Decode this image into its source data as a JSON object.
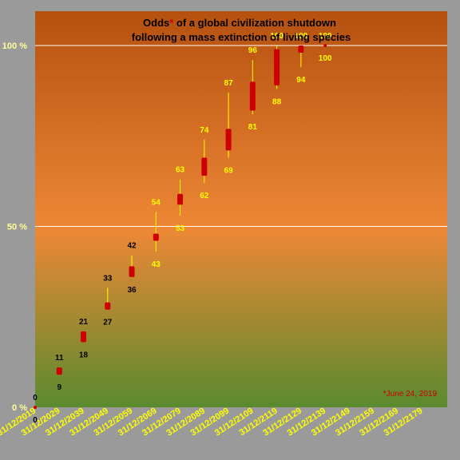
{
  "chart_data": {
    "type": "candlestick",
    "title_line1_pre": "Odds",
    "title_asterisk": "*",
    "title_line1_post": " of a global civilization shutdown",
    "title_line2": "following a mass extinction of living species",
    "footnote": "*June 24, 2019",
    "ylim": [
      0,
      100
    ],
    "y_ticks": [
      {
        "value": 0,
        "label": "0 %"
      },
      {
        "value": 50,
        "label": "50 %"
      },
      {
        "value": 100,
        "label": "100 %"
      }
    ],
    "grid": true,
    "x_tick_labels": [
      "31/12/2019",
      "31/12/2029",
      "31/12/2039",
      "31/12/2049",
      "31/12/2059",
      "31/12/2069",
      "31/12/2079",
      "31/12/2089",
      "31/12/2099",
      "31/12/2109",
      "31/12/2119",
      "31/12/2129",
      "31/12/2139",
      "31/12/2149",
      "31/12/2159",
      "31/12/2169",
      "31/12/2179"
    ],
    "x_range": [
      "2019-06-24",
      "2189-12-31"
    ],
    "points": [
      {
        "date": "2019-06-24",
        "low": 0,
        "high": 0,
        "open": 0,
        "close": 0,
        "high_label": "0",
        "low_label": "0"
      },
      {
        "date": "2029-06-24",
        "low": 9,
        "high": 11,
        "open": 9,
        "close": 11,
        "high_label": "11",
        "low_label": "9"
      },
      {
        "date": "2039-06-24",
        "low": 18,
        "high": 21,
        "open": 18,
        "close": 21,
        "high_label": "21",
        "low_label": "18"
      },
      {
        "date": "2049-06-24",
        "low": 27,
        "high": 33,
        "open": 27,
        "close": 29,
        "high_label": "33",
        "low_label": "27"
      },
      {
        "date": "2059-06-24",
        "low": 36,
        "high": 42,
        "open": 36,
        "close": 39,
        "high_label": "42",
        "low_label": "36"
      },
      {
        "date": "2069-06-24",
        "low": 43,
        "high": 54,
        "open": 46,
        "close": 48,
        "high_label": "54",
        "low_label": "43"
      },
      {
        "date": "2079-06-24",
        "low": 53,
        "high": 63,
        "open": 56,
        "close": 59,
        "high_label": "63",
        "low_label": "53"
      },
      {
        "date": "2089-06-24",
        "low": 62,
        "high": 74,
        "open": 64,
        "close": 69,
        "high_label": "74",
        "low_label": "62"
      },
      {
        "date": "2099-06-24",
        "low": 69,
        "high": 87,
        "open": 71,
        "close": 77,
        "high_label": "87",
        "low_label": "69"
      },
      {
        "date": "2109-06-24",
        "low": 81,
        "high": 96,
        "open": 82,
        "close": 90,
        "high_label": "96",
        "low_label": "81"
      },
      {
        "date": "2119-06-24",
        "low": 88,
        "high": 100,
        "open": 89,
        "close": 99,
        "high_label": "100",
        "low_label": "88"
      },
      {
        "date": "2129-06-24",
        "low": 94,
        "high": 100,
        "open": 98,
        "close": 100,
        "high_label": "100",
        "low_label": "94"
      },
      {
        "date": "2139-06-24",
        "low": 100,
        "high": 100,
        "open": 100,
        "close": 100,
        "high_label": "100",
        "low_label": "100"
      }
    ],
    "colors": {
      "candle": "#cc0000",
      "wick": "#ffff00",
      "label_dark": "#000000",
      "label_light": "#ffff00",
      "grid": "#ffffff",
      "plot_top": "#b5500f",
      "plot_mid": "#ee8836",
      "plot_bottom": "#5a8a2e",
      "frame_bg": "#9a9a9a"
    }
  }
}
